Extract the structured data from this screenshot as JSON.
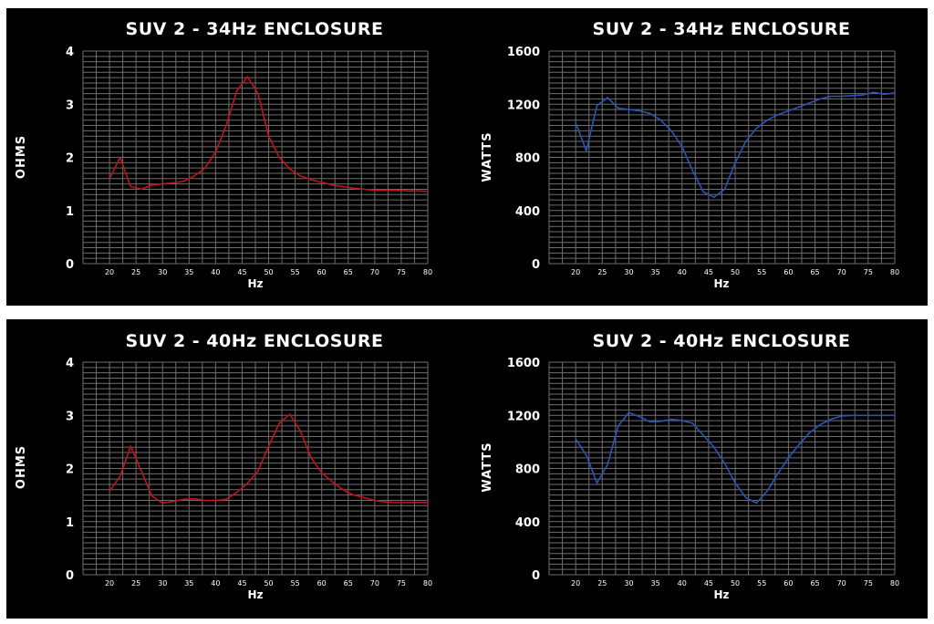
{
  "chart_data": [
    {
      "type": "line",
      "title": "SUV 2 - 34Hz ENCLOSURE",
      "xlabel": "Hz",
      "ylabel": "OHMS",
      "xlim": [
        15,
        80
      ],
      "ylim": [
        0,
        4
      ],
      "xticks": [
        20,
        25,
        30,
        35,
        40,
        45,
        50,
        55,
        60,
        65,
        70,
        75,
        80
      ],
      "yticks": [
        0,
        1,
        2,
        3,
        4
      ],
      "color": "#c0151b",
      "x": [
        20,
        22,
        24,
        26,
        28,
        30,
        32,
        34,
        36,
        38,
        40,
        42,
        44,
        46,
        48,
        50,
        52,
        54,
        56,
        58,
        60,
        62,
        64,
        66,
        68,
        70,
        72,
        74,
        76,
        78,
        80
      ],
      "y": [
        1.6,
        2.0,
        1.45,
        1.4,
        1.48,
        1.5,
        1.52,
        1.55,
        1.65,
        1.8,
        2.1,
        2.6,
        3.25,
        3.52,
        3.2,
        2.4,
        2.0,
        1.78,
        1.65,
        1.58,
        1.53,
        1.48,
        1.45,
        1.42,
        1.4,
        1.38,
        1.38,
        1.38,
        1.37,
        1.37,
        1.36
      ]
    },
    {
      "type": "line",
      "title": "SUV 2 - 34Hz ENCLOSURE",
      "xlabel": "Hz",
      "ylabel": "WATTS",
      "xlim": [
        15,
        80
      ],
      "ylim": [
        0,
        1600
      ],
      "xticks": [
        20,
        25,
        30,
        35,
        40,
        45,
        50,
        55,
        60,
        65,
        70,
        75,
        80
      ],
      "yticks": [
        0,
        400,
        800,
        1200,
        1600
      ],
      "color": "#2a55b8",
      "x": [
        20,
        22,
        24,
        26,
        28,
        30,
        32,
        34,
        36,
        38,
        40,
        42,
        44,
        46,
        48,
        50,
        52,
        54,
        56,
        58,
        60,
        62,
        64,
        66,
        68,
        70,
        72,
        74,
        76,
        78,
        80
      ],
      "y": [
        1060,
        850,
        1190,
        1250,
        1170,
        1160,
        1150,
        1130,
        1080,
        1000,
        880,
        700,
        540,
        500,
        560,
        760,
        920,
        1020,
        1080,
        1120,
        1150,
        1180,
        1210,
        1240,
        1260,
        1260,
        1265,
        1270,
        1290,
        1275,
        1285
      ]
    },
    {
      "type": "line",
      "title": "SUV 2 - 40Hz ENCLOSURE",
      "xlabel": "Hz",
      "ylabel": "OHMS",
      "xlim": [
        15,
        80
      ],
      "ylim": [
        0,
        4
      ],
      "xticks": [
        20,
        25,
        30,
        35,
        40,
        45,
        50,
        55,
        60,
        65,
        70,
        75,
        80
      ],
      "yticks": [
        0,
        1,
        2,
        3,
        4
      ],
      "color": "#c0151b",
      "x": [
        20,
        22,
        24,
        26,
        28,
        30,
        32,
        34,
        36,
        38,
        40,
        42,
        44,
        46,
        48,
        50,
        52,
        54,
        56,
        58,
        60,
        62,
        64,
        66,
        68,
        70,
        72,
        74,
        76,
        78,
        80
      ],
      "y": [
        1.57,
        1.85,
        2.42,
        1.95,
        1.48,
        1.35,
        1.38,
        1.42,
        1.43,
        1.4,
        1.4,
        1.42,
        1.55,
        1.72,
        1.95,
        2.42,
        2.85,
        3.02,
        2.7,
        2.2,
        1.92,
        1.75,
        1.6,
        1.5,
        1.45,
        1.4,
        1.37,
        1.36,
        1.36,
        1.36,
        1.36
      ]
    },
    {
      "type": "line",
      "title": "SUV 2 - 40Hz ENCLOSURE",
      "xlabel": "Hz",
      "ylabel": "WATTS",
      "xlim": [
        15,
        80
      ],
      "ylim": [
        0,
        1600
      ],
      "xticks": [
        20,
        25,
        30,
        35,
        40,
        45,
        50,
        55,
        60,
        65,
        70,
        75,
        80
      ],
      "yticks": [
        0,
        400,
        800,
        1200,
        1600
      ],
      "color": "#2a55b8",
      "x": [
        20,
        22,
        24,
        26,
        28,
        30,
        32,
        34,
        36,
        38,
        40,
        42,
        44,
        46,
        48,
        50,
        52,
        54,
        56,
        58,
        60,
        62,
        64,
        66,
        68,
        70,
        72,
        74,
        76,
        78,
        80
      ],
      "y": [
        1020,
        900,
        690,
        830,
        1120,
        1220,
        1190,
        1150,
        1155,
        1170,
        1160,
        1140,
        1050,
        960,
        840,
        690,
        580,
        540,
        630,
        760,
        880,
        980,
        1070,
        1130,
        1170,
        1195,
        1200,
        1200,
        1200,
        1200,
        1200
      ]
    }
  ]
}
